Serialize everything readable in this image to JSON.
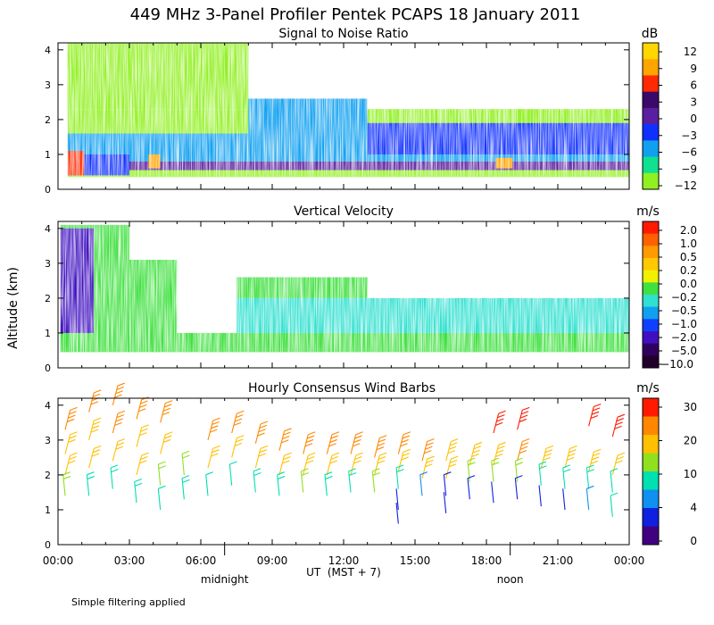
{
  "chart_data": {
    "type": "profiler-time-height",
    "title": "449 MHz 3-Panel Profiler Pentek PCAPS 18 January 2011",
    "ylabel": "Altitude (km)",
    "xlabel": "UT  (MST + 7)",
    "x_range_hours": [
      0,
      24
    ],
    "x_tick_labels": [
      "00:00",
      "03:00",
      "06:00",
      "09:00",
      "12:00",
      "15:00",
      "18:00",
      "21:00",
      "00:00"
    ],
    "local_time_labels": [
      {
        "label": "midnight",
        "hour_ut": 7
      },
      {
        "label": "noon",
        "hour_ut": 19
      }
    ],
    "footnote": "Simple filtering applied",
    "panels": [
      {
        "id": "snr",
        "title": "Signal to Noise Ratio",
        "unit": "dB",
        "ylim": [
          0,
          4.2
        ],
        "y_tick_labels": [
          "0",
          "1",
          "2",
          "3",
          "4"
        ],
        "colorbar_labels": [
          "12",
          "9",
          "6",
          "3",
          "0",
          "−3",
          "−6",
          "−9",
          "−12"
        ],
        "colors": [
          "#ffd700",
          "#ffa500",
          "#ff2a00",
          "#3a0a6a",
          "#5a1fa0",
          "#1030ff",
          "#10a0f0",
          "#10e090",
          "#90f020"
        ],
        "bands": [
          {
            "x": [
              0.4,
              24
            ],
            "y": [
              0.35,
              2.3
            ],
            "color": "#90f020"
          },
          {
            "x": [
              0.4,
              8
            ],
            "y": [
              2.3,
              4.2
            ],
            "color": "#90f020"
          },
          {
            "x": [
              0.4,
              24
            ],
            "y": [
              0.55,
              0.8
            ],
            "color": "#5a1fa0"
          },
          {
            "x": [
              0.4,
              24
            ],
            "y": [
              0.8,
              1.6
            ],
            "color": "#10a0f0"
          },
          {
            "x": [
              8,
              13
            ],
            "y": [
              1.4,
              2.6
            ],
            "color": "#10a0f0"
          },
          {
            "x": [
              13,
              24
            ],
            "y": [
              1.0,
              1.9
            ],
            "color": "#1030ff"
          },
          {
            "x": [
              0.4,
              3
            ],
            "y": [
              0.4,
              1.0
            ],
            "color": "#1030ff"
          },
          {
            "x": [
              0.4,
              1.1
            ],
            "y": [
              0.4,
              1.1
            ],
            "color": "#ff2a00"
          },
          {
            "x": [
              3.8,
              4.3
            ],
            "y": [
              0.6,
              1.0
            ],
            "color": "#ffa500"
          },
          {
            "x": [
              18.4,
              19.1
            ],
            "y": [
              0.6,
              0.9
            ],
            "color": "#ffa500"
          }
        ]
      },
      {
        "id": "vv",
        "title": "Vertical Velocity",
        "unit": "m/s",
        "ylim": [
          0,
          4.2
        ],
        "y_tick_labels": [
          "0",
          "1",
          "2",
          "3",
          "4"
        ],
        "colorbar_labels": [
          "2.0",
          "1.0",
          "0.5",
          "0.2",
          "0.0",
          "−0.2",
          "−0.5",
          "−1.0",
          "−2.0",
          "−5.0",
          "−10.0"
        ],
        "colors": [
          "#ff1a00",
          "#ff6000",
          "#ff9a00",
          "#ffc800",
          "#f0f000",
          "#40e040",
          "#30e0d0",
          "#10a0f0",
          "#1040ff",
          "#4010c0",
          "#300060",
          "#20002a"
        ],
        "bands": [
          {
            "x": [
              0.1,
              3
            ],
            "y": [
              0.45,
              4.1
            ],
            "color": "#40e040"
          },
          {
            "x": [
              3,
              5
            ],
            "y": [
              0.45,
              3.1
            ],
            "color": "#40e040"
          },
          {
            "x": [
              5,
              24
            ],
            "y": [
              0.45,
              1.0
            ],
            "color": "#40e040"
          },
          {
            "x": [
              7.5,
              24
            ],
            "y": [
              1.0,
              2.0
            ],
            "color": "#30e0d0"
          },
          {
            "x": [
              0.1,
              1.5
            ],
            "y": [
              1.0,
              4.0
            ],
            "color": "#4010c0"
          },
          {
            "x": [
              7.5,
              13
            ],
            "y": [
              2.0,
              2.6
            ],
            "color": "#40e040"
          }
        ]
      },
      {
        "id": "wind",
        "title": "Hourly Consensus Wind Barbs",
        "unit": "m/s",
        "ylim": [
          0,
          4.2
        ],
        "y_tick_labels": [
          "0",
          "1",
          "2",
          "3",
          "4"
        ],
        "colorbar_labels": [
          "30",
          "20",
          "10",
          "4",
          "0"
        ],
        "colors": [
          "#ff1a00",
          "#ff8800",
          "#ffc000",
          "#90e020",
          "#00e0b0",
          "#1090f0",
          "#1020e0",
          "#400080"
        ],
        "barbs": [
          {
            "hour": 0,
            "alt": 3.3,
            "speed": 20
          },
          {
            "hour": 0,
            "alt": 2.6,
            "speed": 15
          },
          {
            "hour": 0,
            "alt": 2.0,
            "speed": 14
          },
          {
            "hour": 0,
            "alt": 1.4,
            "speed": 10
          },
          {
            "hour": 1,
            "alt": 3.8,
            "speed": 20
          },
          {
            "hour": 1,
            "alt": 3.0,
            "speed": 18
          },
          {
            "hour": 1,
            "alt": 2.2,
            "speed": 15
          },
          {
            "hour": 1,
            "alt": 1.4,
            "speed": 8
          },
          {
            "hour": 2,
            "alt": 4.0,
            "speed": 22
          },
          {
            "hour": 2,
            "alt": 3.2,
            "speed": 20
          },
          {
            "hour": 2,
            "alt": 2.4,
            "speed": 15
          },
          {
            "hour": 2,
            "alt": 1.6,
            "speed": 8
          },
          {
            "hour": 3,
            "alt": 3.6,
            "speed": 20
          },
          {
            "hour": 3,
            "alt": 2.8,
            "speed": 17
          },
          {
            "hour": 3,
            "alt": 2.0,
            "speed": 14
          },
          {
            "hour": 3,
            "alt": 1.2,
            "speed": 8
          },
          {
            "hour": 4,
            "alt": 3.5,
            "speed": 20
          },
          {
            "hour": 4,
            "alt": 2.6,
            "speed": 15
          },
          {
            "hour": 4,
            "alt": 1.7,
            "speed": 10
          },
          {
            "hour": 4,
            "alt": 1.0,
            "speed": 6
          },
          {
            "hour": 5,
            "alt": 2.0,
            "speed": 10
          },
          {
            "hour": 5,
            "alt": 1.3,
            "speed": 8
          },
          {
            "hour": 6,
            "alt": 3.0,
            "speed": 20
          },
          {
            "hour": 6,
            "alt": 2.2,
            "speed": 15
          },
          {
            "hour": 6,
            "alt": 1.4,
            "speed": 6
          },
          {
            "hour": 7,
            "alt": 3.2,
            "speed": 20
          },
          {
            "hour": 7,
            "alt": 2.5,
            "speed": 14
          },
          {
            "hour": 7,
            "alt": 1.7,
            "speed": 6
          },
          {
            "hour": 8,
            "alt": 2.9,
            "speed": 20
          },
          {
            "hour": 8,
            "alt": 2.2,
            "speed": 14
          },
          {
            "hour": 8,
            "alt": 1.5,
            "speed": 8
          },
          {
            "hour": 9,
            "alt": 2.7,
            "speed": 20
          },
          {
            "hour": 9,
            "alt": 2.0,
            "speed": 14
          },
          {
            "hour": 9,
            "alt": 1.4,
            "speed": 8
          },
          {
            "hour": 10,
            "alt": 2.6,
            "speed": 20
          },
          {
            "hour": 10,
            "alt": 2.0,
            "speed": 14
          },
          {
            "hour": 10,
            "alt": 1.5,
            "speed": 10
          },
          {
            "hour": 11,
            "alt": 2.6,
            "speed": 20
          },
          {
            "hour": 11,
            "alt": 2.0,
            "speed": 15
          },
          {
            "hour": 11,
            "alt": 1.4,
            "speed": 8
          },
          {
            "hour": 12,
            "alt": 2.6,
            "speed": 20
          },
          {
            "hour": 12,
            "alt": 2.0,
            "speed": 15
          },
          {
            "hour": 12,
            "alt": 1.5,
            "speed": 8
          },
          {
            "hour": 13,
            "alt": 2.5,
            "speed": 20
          },
          {
            "hour": 13,
            "alt": 2.0,
            "speed": 15
          },
          {
            "hour": 13,
            "alt": 1.5,
            "speed": 10
          },
          {
            "hour": 14,
            "alt": 2.6,
            "speed": 20
          },
          {
            "hour": 14,
            "alt": 2.1,
            "speed": 16
          },
          {
            "hour": 14,
            "alt": 1.6,
            "speed": 8
          },
          {
            "hour": 14,
            "alt": 1.0,
            "speed": 2
          },
          {
            "hour": 14,
            "alt": 0.6,
            "speed": 2
          },
          {
            "hour": 15,
            "alt": 2.4,
            "speed": 20
          },
          {
            "hour": 15,
            "alt": 1.9,
            "speed": 14
          },
          {
            "hour": 15,
            "alt": 1.4,
            "speed": 4
          },
          {
            "hour": 16,
            "alt": 2.4,
            "speed": 18
          },
          {
            "hour": 16,
            "alt": 1.9,
            "speed": 14
          },
          {
            "hour": 16,
            "alt": 1.4,
            "speed": 3
          },
          {
            "hour": 16,
            "alt": 0.9,
            "speed": 2
          },
          {
            "hour": 17,
            "alt": 2.3,
            "speed": 18
          },
          {
            "hour": 17,
            "alt": 1.8,
            "speed": 12
          },
          {
            "hour": 17,
            "alt": 1.3,
            "speed": 3
          },
          {
            "hour": 18,
            "alt": 3.2,
            "speed": 30
          },
          {
            "hour": 18,
            "alt": 2.3,
            "speed": 18
          },
          {
            "hour": 18,
            "alt": 1.8,
            "speed": 12
          },
          {
            "hour": 18,
            "alt": 1.2,
            "speed": 2
          },
          {
            "hour": 19,
            "alt": 3.3,
            "speed": 30
          },
          {
            "hour": 19,
            "alt": 2.4,
            "speed": 20
          },
          {
            "hour": 19,
            "alt": 1.8,
            "speed": 10
          },
          {
            "hour": 19,
            "alt": 1.3,
            "speed": 3
          },
          {
            "hour": 20,
            "alt": 2.2,
            "speed": 18
          },
          {
            "hour": 20,
            "alt": 1.7,
            "speed": 8
          },
          {
            "hour": 20,
            "alt": 1.1,
            "speed": 2
          },
          {
            "hour": 21,
            "alt": 2.2,
            "speed": 18
          },
          {
            "hour": 21,
            "alt": 1.6,
            "speed": 8
          },
          {
            "hour": 21,
            "alt": 1.0,
            "speed": 2
          },
          {
            "hour": 22,
            "alt": 3.4,
            "speed": 30
          },
          {
            "hour": 22,
            "alt": 2.1,
            "speed": 18
          },
          {
            "hour": 22,
            "alt": 1.6,
            "speed": 8
          },
          {
            "hour": 22,
            "alt": 1.0,
            "speed": 4
          },
          {
            "hour": 23,
            "alt": 3.1,
            "speed": 28
          },
          {
            "hour": 23,
            "alt": 2.0,
            "speed": 15
          },
          {
            "hour": 23,
            "alt": 1.5,
            "speed": 6
          },
          {
            "hour": 23,
            "alt": 0.8,
            "speed": 6
          }
        ]
      }
    ]
  }
}
